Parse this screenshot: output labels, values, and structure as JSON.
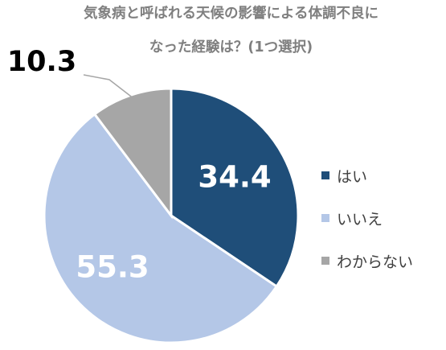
{
  "chart_data": {
    "type": "pie",
    "title": "気象病と呼ばれる天候の影響による体調不良になった経験は？(1つ選択)",
    "title_lines": [
      "気象病と呼ばれる天候の影響による体調不良に",
      "なった経験は？(1つ選択)"
    ],
    "slices": [
      {
        "label": "はい",
        "value": 34.4,
        "value_text": "34.4",
        "color": "#1f4e79",
        "label_color": "#ffffff"
      },
      {
        "label": "いいえ",
        "value": 55.3,
        "value_text": "55.3",
        "color": "#b4c7e7",
        "label_color": "#ffffff"
      },
      {
        "label": "わからない",
        "value": 10.3,
        "value_text": "10.3",
        "color": "#a6a6a6",
        "label_color": "#000000"
      }
    ],
    "legend_position": "right",
    "start_angle": "12 o'clock, clockwise"
  }
}
